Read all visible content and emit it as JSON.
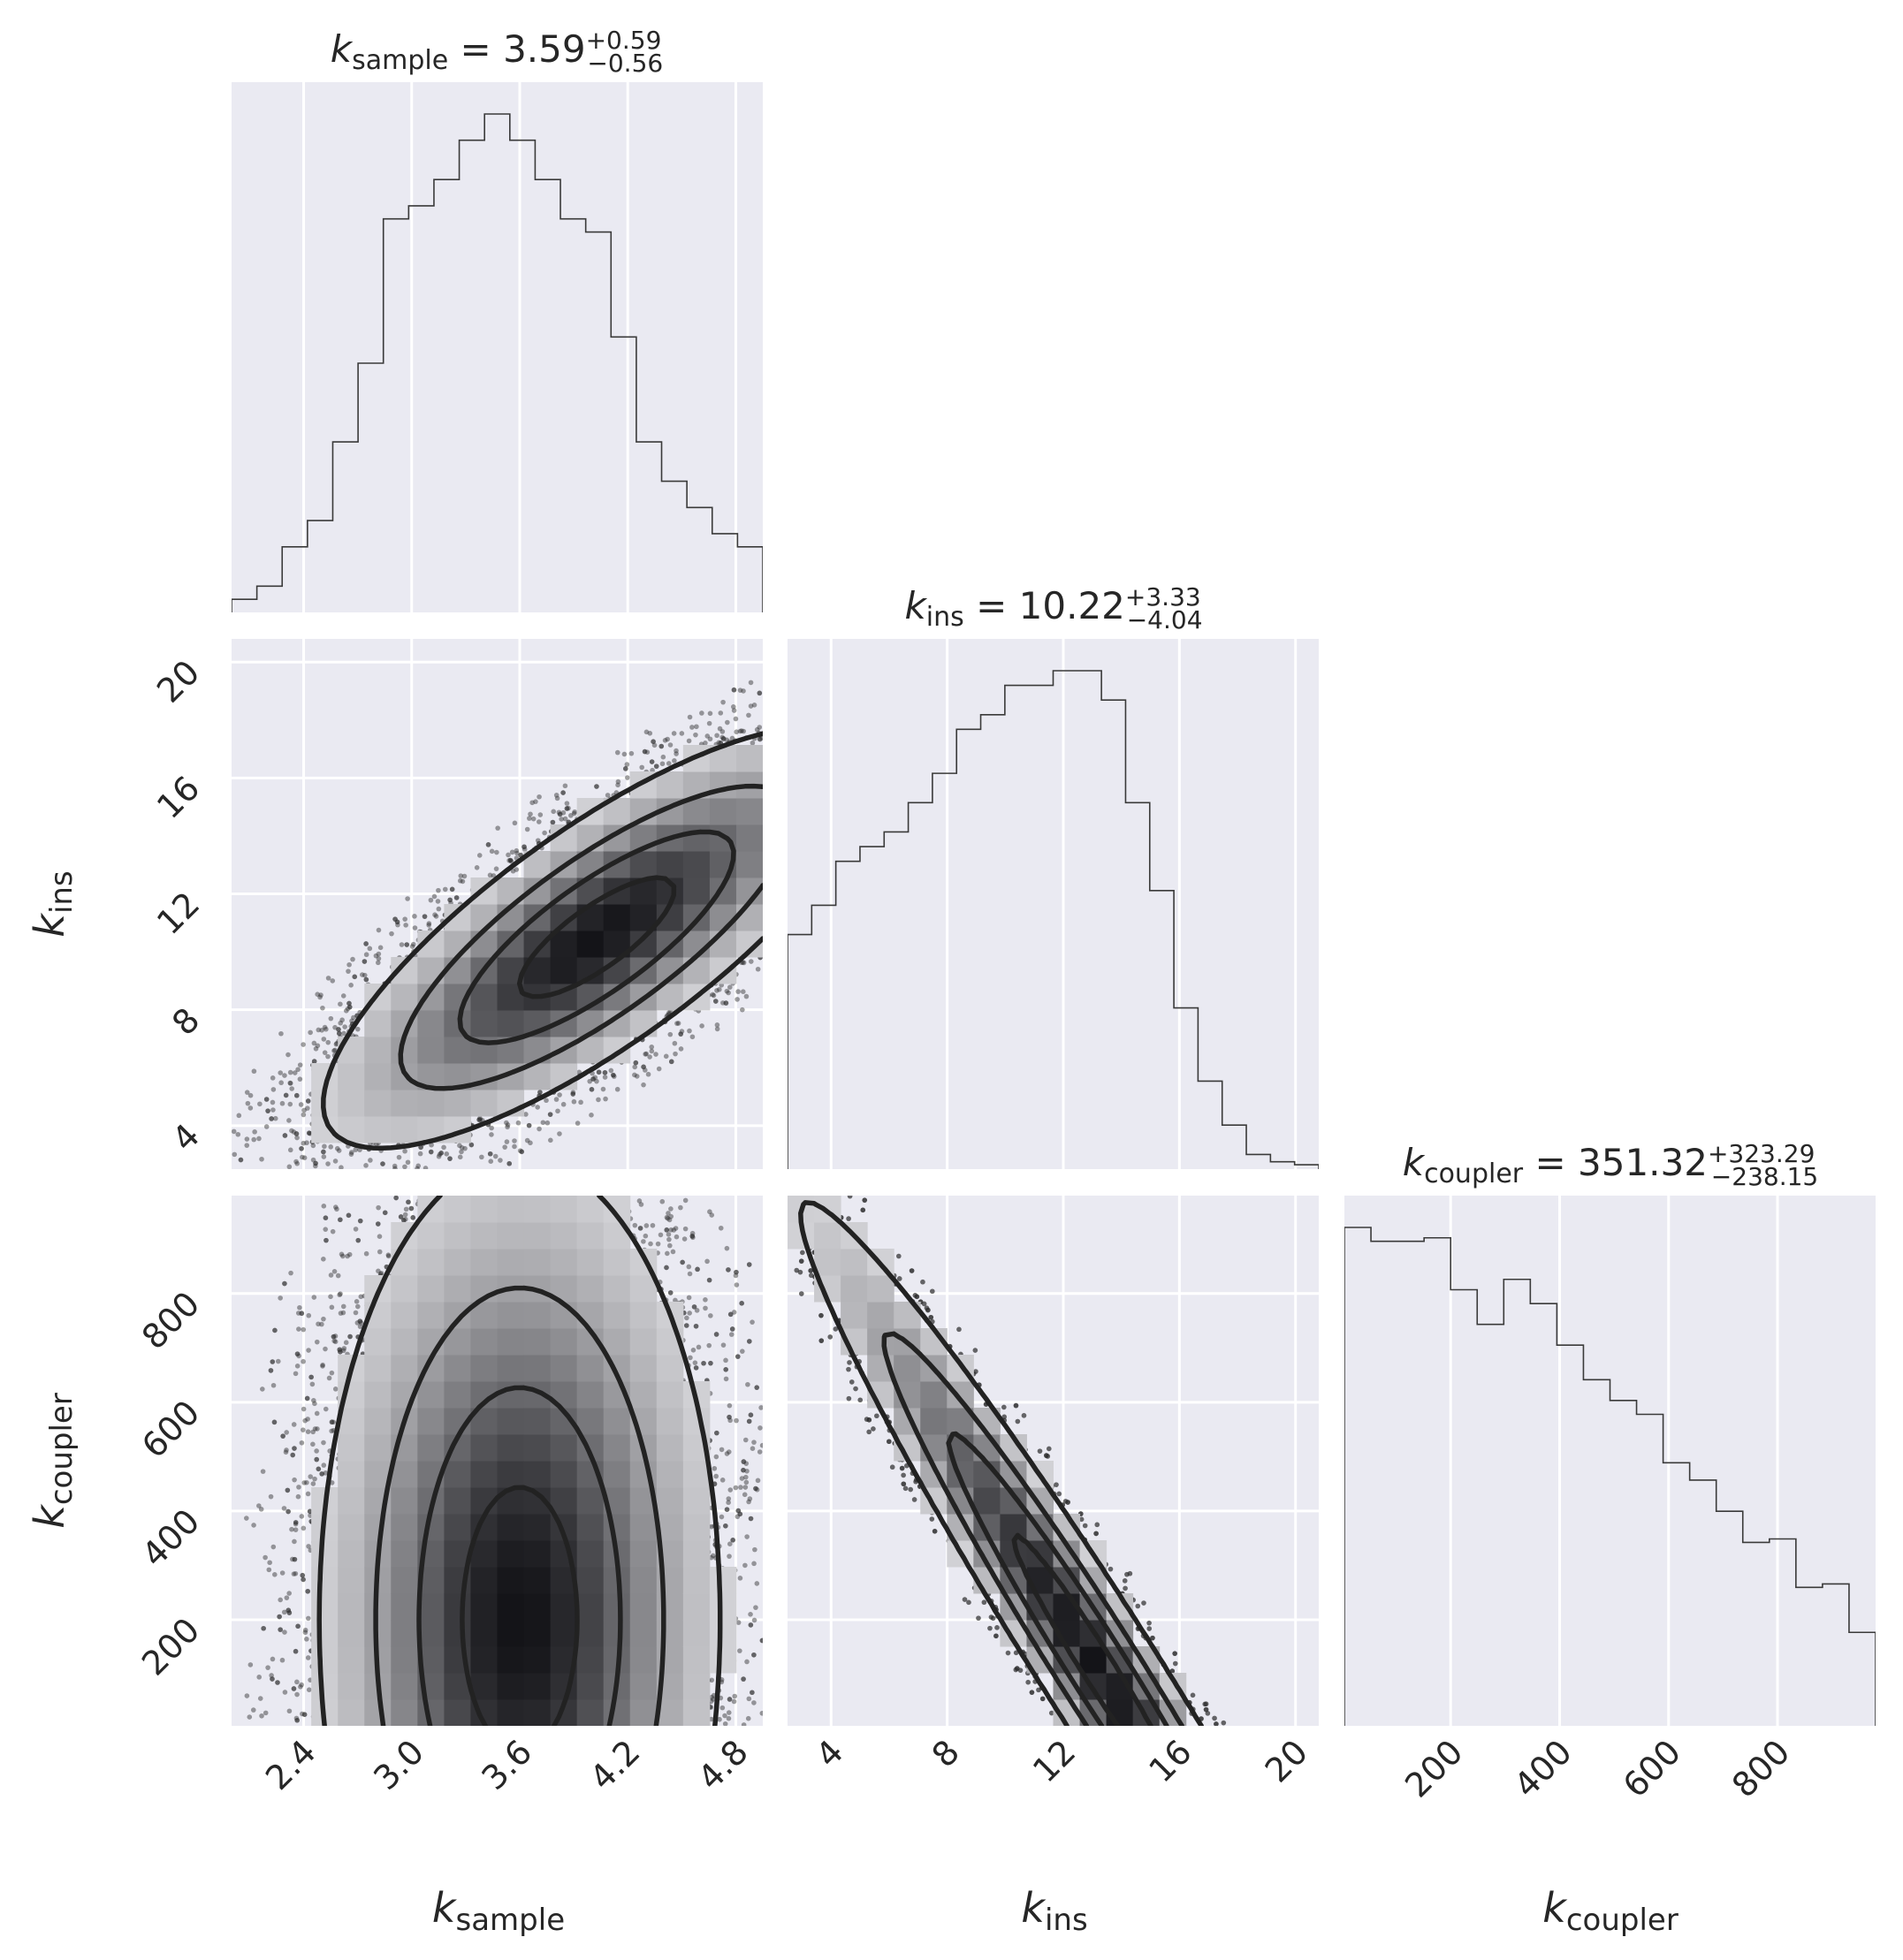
{
  "chart_data": {
    "type": "corner",
    "parameters": [
      {
        "symbol": "k",
        "sub": "sample",
        "range": [
          2.0,
          4.95
        ],
        "ticks": [
          "2.4",
          "3.0",
          "3.6",
          "4.2",
          "4.8"
        ]
      },
      {
        "symbol": "k",
        "sub": "ins",
        "range": [
          2.5,
          20.8
        ],
        "ticks": [
          "4",
          "8",
          "12",
          "16",
          "20"
        ]
      },
      {
        "symbol": "k",
        "sub": "coupler",
        "range": [
          5,
          980
        ],
        "ticks": [
          "200",
          "400",
          "600",
          "800"
        ]
      }
    ],
    "titles": [
      {
        "symbol": "k",
        "sub": "sample",
        "value": " = 3.59",
        "plus": "+0.59",
        "minus": "−0.56"
      },
      {
        "symbol": "k",
        "sub": "ins",
        "value": " = 10.22",
        "plus": "+3.33",
        "minus": "−4.04"
      },
      {
        "symbol": "k",
        "sub": "coupler",
        "value": " = 351.32",
        "plus": "+323.29",
        "minus": "−238.15"
      }
    ],
    "histograms": [
      {
        "edges_range": [
          2.0,
          4.95
        ],
        "counts": [
          1,
          2,
          5,
          7,
          13,
          19,
          30,
          31,
          33,
          36,
          38,
          36,
          33,
          30,
          29,
          21,
          13,
          10,
          8,
          6,
          5
        ]
      },
      {
        "edges_range": [
          2.5,
          20.8
        ],
        "counts": [
          16,
          18,
          21,
          22,
          23,
          25,
          27,
          30,
          31,
          33,
          33,
          34,
          34,
          32,
          25,
          19,
          11,
          6,
          3,
          1,
          0.5,
          0.3
        ]
      },
      {
        "edges_range": [
          5,
          980
        ],
        "counts": [
          7.2,
          7.0,
          7.0,
          7.05,
          6.3,
          5.8,
          6.45,
          6.1,
          5.5,
          5.0,
          4.7,
          4.5,
          3.8,
          3.55,
          3.1,
          2.65,
          2.7,
          2.0,
          2.05,
          1.35
        ]
      }
    ],
    "contour_levels": 4,
    "density_shading": "gray",
    "scatter": "gray points outside outer contour",
    "grid": true,
    "background": "#eaeaf2"
  }
}
